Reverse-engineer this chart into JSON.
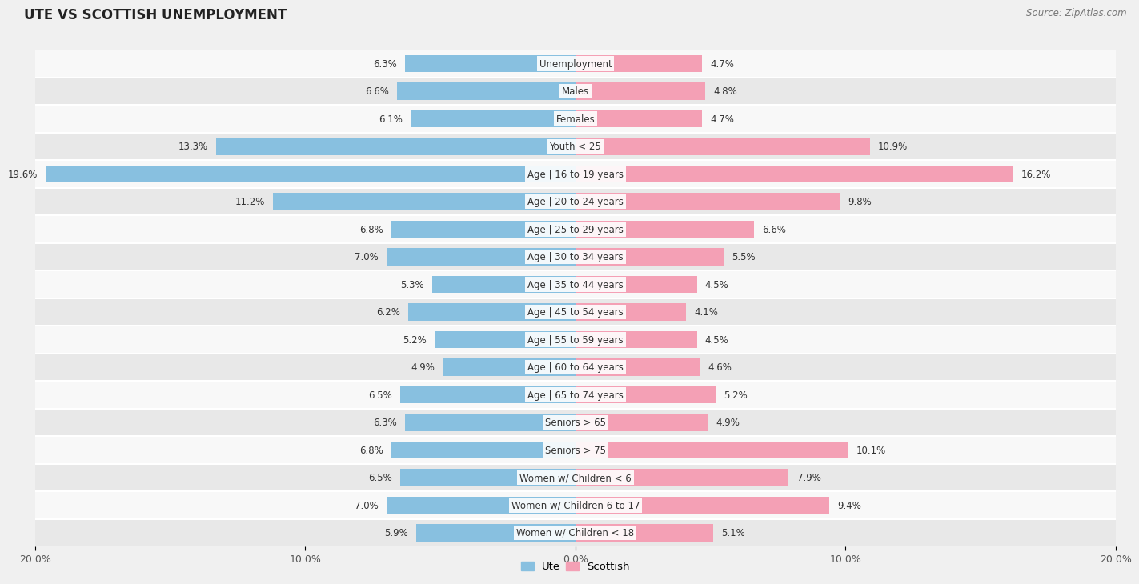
{
  "title": "UTE VS SCOTTISH UNEMPLOYMENT",
  "source": "Source: ZipAtlas.com",
  "categories": [
    "Unemployment",
    "Males",
    "Females",
    "Youth < 25",
    "Age | 16 to 19 years",
    "Age | 20 to 24 years",
    "Age | 25 to 29 years",
    "Age | 30 to 34 years",
    "Age | 35 to 44 years",
    "Age | 45 to 54 years",
    "Age | 55 to 59 years",
    "Age | 60 to 64 years",
    "Age | 65 to 74 years",
    "Seniors > 65",
    "Seniors > 75",
    "Women w/ Children < 6",
    "Women w/ Children 6 to 17",
    "Women w/ Children < 18"
  ],
  "ute_values": [
    6.3,
    6.6,
    6.1,
    13.3,
    19.6,
    11.2,
    6.8,
    7.0,
    5.3,
    6.2,
    5.2,
    4.9,
    6.5,
    6.3,
    6.8,
    6.5,
    7.0,
    5.9
  ],
  "scottish_values": [
    4.7,
    4.8,
    4.7,
    10.9,
    16.2,
    9.8,
    6.6,
    5.5,
    4.5,
    4.1,
    4.5,
    4.6,
    5.2,
    4.9,
    10.1,
    7.9,
    9.4,
    5.1
  ],
  "ute_color": "#88c0e0",
  "scottish_color": "#f4a0b5",
  "bar_height": 0.62,
  "xlim": 20.0,
  "background_color": "#f0f0f0",
  "row_light_color": "#f8f8f8",
  "row_dark_color": "#e8e8e8",
  "label_fontsize": 8.5,
  "title_fontsize": 12,
  "value_fontsize": 8.5,
  "legend_fontsize": 9.5
}
